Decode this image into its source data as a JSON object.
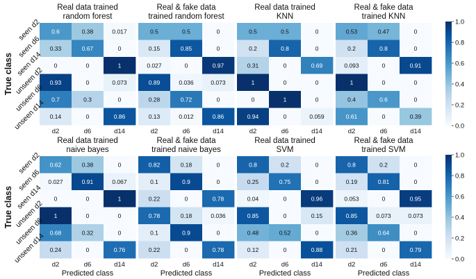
{
  "chart_data": {
    "type": "heatmap",
    "row_labels": [
      "seen d2",
      "seen d6",
      "seen d14",
      "unseen d2",
      "unseen d6",
      "unseen d14"
    ],
    "col_labels": [
      "d2",
      "d6",
      "d14"
    ],
    "ylabel": "True class",
    "xlabel": "Predicted class",
    "vmin": 0,
    "vmax": 1,
    "colorbar_ticks": [
      "1.0",
      "0.8",
      "0.6",
      "0.4",
      "0.2",
      "0.0"
    ],
    "colorbar_values": [
      1.0,
      0.8,
      0.6,
      0.4,
      0.2,
      0.0
    ],
    "colormap": [
      "#f7fbff",
      "#deebf7",
      "#c6dbef",
      "#9ecae1",
      "#6baed6",
      "#4292c6",
      "#2171b5",
      "#08519c",
      "#08306b"
    ],
    "panels": [
      {
        "title": [
          "Real data trained",
          "random forest"
        ],
        "matrix": [
          [
            0.6,
            0.38,
            0.017
          ],
          [
            0.33,
            0.67,
            0
          ],
          [
            0,
            0,
            1
          ],
          [
            0.93,
            0,
            0.073
          ],
          [
            0.7,
            0.3,
            0
          ],
          [
            0.14,
            0,
            0.86
          ]
        ]
      },
      {
        "title": [
          "Real & fake data",
          "trained random forest"
        ],
        "matrix": [
          [
            0.5,
            0.5,
            0
          ],
          [
            0.15,
            0.85,
            0
          ],
          [
            0.027,
            0,
            0.97
          ],
          [
            0.89,
            0.036,
            0.073
          ],
          [
            0.28,
            0.72,
            0
          ],
          [
            0.13,
            0.012,
            0.86
          ]
        ]
      },
      {
        "title": [
          "Real data trained",
          "KNN"
        ],
        "matrix": [
          [
            0.5,
            0.5,
            0
          ],
          [
            0.2,
            0.8,
            0
          ],
          [
            0.31,
            0,
            0.69
          ],
          [
            1,
            0,
            0
          ],
          [
            0,
            1,
            0
          ],
          [
            0.94,
            0,
            0.059
          ]
        ]
      },
      {
        "title": [
          "Real & fake data",
          "trained KNN"
        ],
        "matrix": [
          [
            0.53,
            0.47,
            0
          ],
          [
            0.2,
            0.8,
            0
          ],
          [
            0.093,
            0,
            0.91
          ],
          [
            1,
            0,
            0
          ],
          [
            0.4,
            0.6,
            0
          ],
          [
            0.61,
            0,
            0.39
          ]
        ]
      },
      {
        "title": [
          "Real data trained",
          "naive bayes"
        ],
        "matrix": [
          [
            0.62,
            0.38,
            0
          ],
          [
            0.027,
            0.91,
            0.067
          ],
          [
            0,
            0,
            1
          ],
          [
            1,
            0,
            0
          ],
          [
            0.68,
            0.32,
            0
          ],
          [
            0.24,
            0,
            0.76
          ]
        ]
      },
      {
        "title": [
          "Real & fake data",
          "trained naive bayes"
        ],
        "matrix": [
          [
            0.82,
            0.18,
            0
          ],
          [
            0.1,
            0.9,
            0
          ],
          [
            0.22,
            0,
            0.78
          ],
          [
            0.78,
            0.18,
            0.036
          ],
          [
            0.1,
            0.9,
            0
          ],
          [
            0.22,
            0,
            0.78
          ]
        ]
      },
      {
        "title": [
          "Real data trained",
          "SVM"
        ],
        "matrix": [
          [
            0.8,
            0.2,
            0
          ],
          [
            0.25,
            0.75,
            0
          ],
          [
            0.04,
            0,
            0.96
          ],
          [
            0.85,
            0,
            0.15
          ],
          [
            0.48,
            0.52,
            0
          ],
          [
            0.12,
            0,
            0.88
          ]
        ]
      },
      {
        "title": [
          "Real & fake data",
          "trained SVM"
        ],
        "matrix": [
          [
            0.8,
            0.2,
            0
          ],
          [
            0.19,
            0.81,
            0
          ],
          [
            0.053,
            0,
            0.95
          ],
          [
            0.85,
            0.073,
            0.073
          ],
          [
            0.36,
            0.64,
            0
          ],
          [
            0.21,
            0,
            0.79
          ]
        ]
      }
    ]
  }
}
